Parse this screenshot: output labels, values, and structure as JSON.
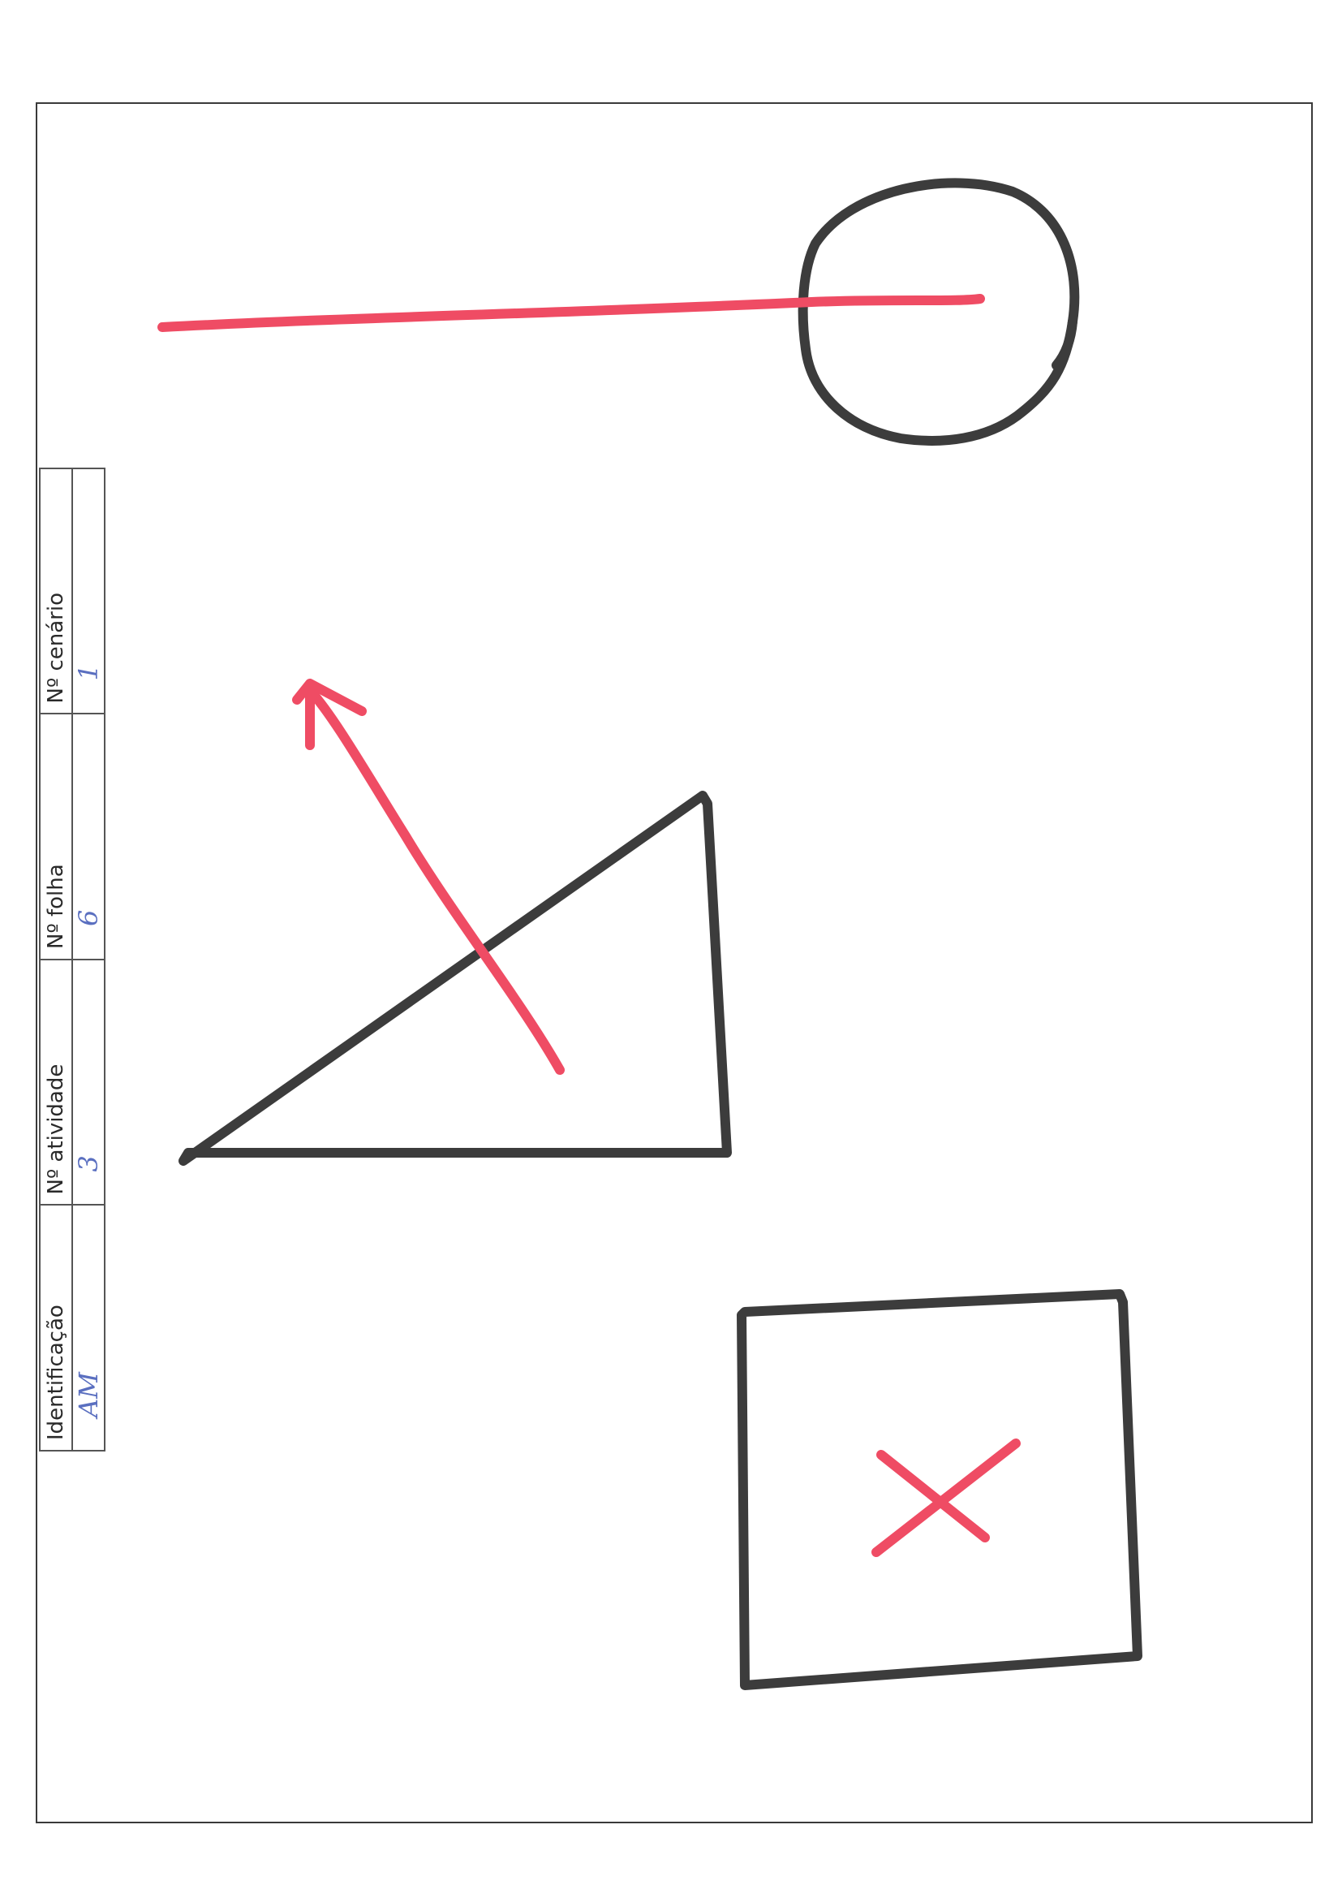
{
  "id_table": {
    "headers": [
      "Identificação",
      "Nº atividade",
      "Nº folha",
      "Nº cenário"
    ],
    "values": [
      "AM",
      "3",
      "6",
      "1"
    ]
  },
  "colors": {
    "ink": "#3c3c3c",
    "marker_red": "#ef4c64",
    "frame": "#3a3a3a",
    "handwriting_blue": "#5a6fc0"
  },
  "drawing_shapes": [
    "circle",
    "line",
    "triangle",
    "arrow",
    "square",
    "cross"
  ]
}
